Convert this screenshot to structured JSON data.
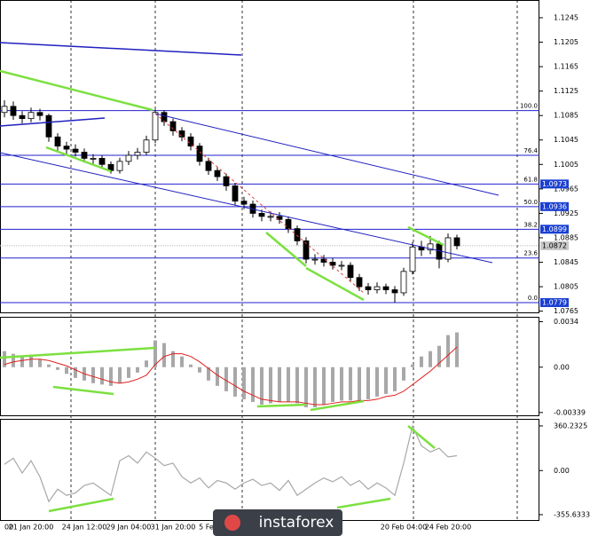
{
  "chart_data": [
    {
      "type": "candlestick",
      "categories": [
        "00",
        null,
        null,
        "21 Jan 20:00",
        null,
        null,
        null,
        null,
        null,
        "24 Jan 12:00",
        null,
        null,
        null,
        null,
        "29 Jan 04:00",
        null,
        null,
        null,
        null,
        "31 Jan 20:00",
        null,
        null,
        null,
        "5 Feb",
        null,
        null,
        null,
        null,
        null,
        null,
        null,
        null,
        null,
        null,
        null,
        null,
        null,
        null,
        null,
        null,
        null,
        null,
        null,
        null,
        null,
        "20 Feb 04:00",
        null,
        null,
        null,
        null,
        "24 Feb 20:00",
        null
      ],
      "open": [
        1.109,
        1.11,
        1.1085,
        1.108,
        1.109,
        1.1085,
        1.105,
        1.1035,
        1.103,
        1.1025,
        1.1015,
        1.1015,
        1.1005,
        1.0995,
        1.101,
        1.102,
        1.1025,
        1.1045,
        1.109,
        1.1075,
        1.106,
        1.105,
        1.1035,
        1.101,
        1.0995,
        1.0985,
        1.097,
        1.0945,
        1.094,
        1.0925,
        1.092,
        1.092,
        1.0915,
        1.09,
        1.088,
        1.085,
        1.085,
        1.0845,
        1.084,
        1.084,
        1.082,
        1.0805,
        1.08,
        1.0805,
        1.08,
        1.0795,
        1.083,
        1.087,
        1.0865,
        1.0875,
        1.085,
        1.0885
      ],
      "high": [
        1.111,
        1.1108,
        1.1092,
        1.1098,
        1.1096,
        1.1088,
        1.1056,
        1.1042,
        1.1038,
        1.1031,
        1.1022,
        1.102,
        1.101,
        1.1016,
        1.1027,
        1.1032,
        1.1052,
        1.1095,
        1.1094,
        1.108,
        1.1066,
        1.1056,
        1.104,
        1.1016,
        1.1001,
        1.099,
        1.0975,
        1.0952,
        1.0946,
        1.0931,
        1.0928,
        1.0927,
        1.092,
        1.0905,
        1.0886,
        1.0858,
        1.0857,
        1.0852,
        1.0847,
        1.0845,
        1.0826,
        1.0811,
        1.0812,
        1.081,
        1.0806,
        1.0836,
        1.0878,
        1.088,
        1.0888,
        1.088,
        1.0892,
        1.089
      ],
      "low": [
        1.1082,
        1.1078,
        1.1072,
        1.1074,
        1.1077,
        1.1042,
        1.1028,
        1.1022,
        1.1018,
        1.1008,
        1.1006,
        1.0998,
        1.099,
        1.099,
        1.1004,
        1.1013,
        1.102,
        1.104,
        1.1068,
        1.1052,
        1.1043,
        1.1028,
        1.1003,
        1.0988,
        1.0978,
        1.0962,
        1.0938,
        1.0932,
        1.0918,
        1.0912,
        1.0912,
        1.0908,
        1.0893,
        1.0873,
        1.0843,
        1.0841,
        1.0838,
        1.0833,
        1.0832,
        1.0813,
        1.0798,
        1.0792,
        1.0794,
        1.0793,
        1.0779,
        1.079,
        1.0825,
        1.0855,
        1.0858,
        1.0835,
        1.0845,
        1.0866
      ],
      "close": [
        1.11,
        1.1085,
        1.108,
        1.109,
        1.1085,
        1.105,
        1.1035,
        1.103,
        1.1025,
        1.1015,
        1.1015,
        1.1005,
        1.0995,
        1.101,
        1.102,
        1.1025,
        1.1045,
        1.109,
        1.1075,
        1.106,
        1.105,
        1.1035,
        1.101,
        1.0995,
        1.0985,
        1.097,
        1.0945,
        1.094,
        1.0925,
        1.092,
        1.092,
        1.0915,
        1.09,
        1.088,
        1.085,
        1.085,
        1.0845,
        1.084,
        1.084,
        1.082,
        1.0805,
        1.08,
        1.0805,
        1.08,
        1.0795,
        1.083,
        1.087,
        1.0865,
        1.0875,
        1.085,
        1.0885,
        1.0872
      ],
      "up_color": "#ffffff",
      "down_color": "#000000",
      "ylim": [
        1.0763,
        1.1274
      ],
      "yticks": [
        1.1245,
        1.1205,
        1.1165,
        1.1125,
        1.1085,
        1.1045,
        1.1005,
        1.0965,
        1.0925,
        1.0885,
        1.0845,
        1.0805,
        1.0765
      ],
      "fib_levels": [
        {
          "level": "100.0",
          "price": 1.1093
        },
        {
          "level": "76.4",
          "price": 1.102
        },
        {
          "level": "61.8",
          "price": 1.0973
        },
        {
          "level": "50.0",
          "price": 1.0936
        },
        {
          "level": "38.2",
          "price": 1.0899
        },
        {
          "level": "23.6",
          "price": 1.0852
        },
        {
          "level": "0.0",
          "price": 1.0779
        }
      ],
      "fib_color": "#2020d0",
      "price_labels": [
        1.0973,
        1.0936,
        1.0899,
        1.0779
      ],
      "current_price": 1.0872
    },
    {
      "type": "macd",
      "histogram": {
        "color": "#a8a8a8",
        "values": [
          0.0012,
          0.001,
          0.0008,
          0.0008,
          0.0006,
          0.0002,
          -0.0002,
          -0.0005,
          -0.0008,
          -0.001,
          -0.0012,
          -0.0013,
          -0.0014,
          -0.0012,
          -0.0008,
          -0.0004,
          0.0005,
          0.002,
          0.0018,
          0.0012,
          0.0008,
          0.0002,
          -0.0004,
          -0.001,
          -0.0014,
          -0.0018,
          -0.0022,
          -0.0024,
          -0.0026,
          -0.0028,
          -0.0027,
          -0.0026,
          -0.0026,
          -0.0027,
          -0.003,
          -0.003,
          -0.0028,
          -0.0026,
          -0.0025,
          -0.0025,
          -0.0025,
          -0.0024,
          -0.0022,
          -0.002,
          -0.0018,
          -0.001,
          0.0002,
          0.0008,
          0.0012,
          0.0016,
          0.0024,
          0.0026
        ]
      },
      "signal": {
        "color": "#e02020",
        "values": [
          0.0002,
          0.0004,
          0.0005,
          0.0006,
          0.0006,
          0.0005,
          0.0003,
          0.0001,
          -0.0002,
          -0.0005,
          -0.0007,
          -0.0009,
          -0.0011,
          -0.0012,
          -0.0011,
          -0.0009,
          -0.0006,
          0.0002,
          0.0008,
          0.001,
          0.001,
          0.0008,
          0.0004,
          -0.0001,
          -0.0006,
          -0.001,
          -0.0014,
          -0.0018,
          -0.0021,
          -0.0024,
          -0.0025,
          -0.0026,
          -0.0026,
          -0.0026,
          -0.0027,
          -0.0028,
          -0.0028,
          -0.0027,
          -0.0026,
          -0.0026,
          -0.0025,
          -0.0025,
          -0.0024,
          -0.0022,
          -0.0021,
          -0.0018,
          -0.0013,
          -0.0008,
          -0.0003,
          0.0003,
          0.0009,
          0.0015
        ]
      },
      "ylim": [
        -0.0036,
        0.0037
      ],
      "yticks": [
        0.0034,
        {
          "value": 0,
          "label": "0.00"
        },
        -0.00339
      ]
    },
    {
      "type": "cci",
      "series": [
        {
          "color": "#a8a8a8",
          "values": [
            50,
            100,
            -20,
            80,
            -50,
            -250,
            -150,
            -200,
            -180,
            -120,
            -100,
            -150,
            -200,
            80,
            120,
            60,
            150,
            100,
            40,
            60,
            -50,
            -100,
            -60,
            -140,
            -80,
            -100,
            -150,
            -100,
            -70,
            -120,
            -100,
            -160,
            -80,
            -200,
            -150,
            -100,
            -60,
            -90,
            -50,
            -120,
            -80,
            -150,
            -100,
            -140,
            -200,
            60,
            360,
            200,
            150,
            180,
            110,
            120
          ]
        }
      ],
      "ylim": [
        -399,
        410
      ],
      "yticks": [
        360.2325,
        {
          "value": 0,
          "label": "0.00"
        },
        -355.6333
      ]
    }
  ],
  "watermark": "instaforex"
}
